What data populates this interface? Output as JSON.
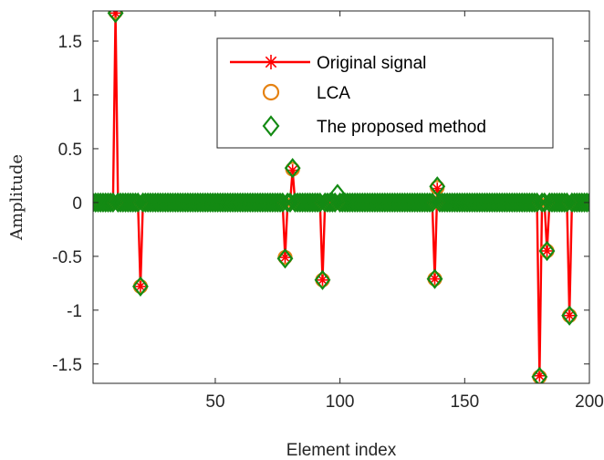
{
  "chart_data": {
    "type": "line",
    "title": "",
    "xlabel": "Element index",
    "ylabel": "Amplitude",
    "xlim": [
      1,
      200
    ],
    "ylim": [
      -1.68,
      1.78
    ],
    "x_ticks": [
      50,
      100,
      150,
      200
    ],
    "y_ticks": [
      -1.5,
      -1,
      -0.5,
      0,
      0.5,
      1,
      1.5
    ],
    "x_tick_labels": [
      "50",
      "100",
      "150",
      "200"
    ],
    "y_tick_labels": [
      "-1.5",
      "-1",
      "-0.5",
      "0",
      "0.5",
      "1",
      "1.5"
    ],
    "length": 200,
    "grid": false,
    "legend_position": "top-right",
    "series": [
      {
        "name": "Original signal",
        "color": "#ff0000",
        "marker": "asterisk",
        "style": "line",
        "nonzero": [
          [
            10,
            1.76
          ],
          [
            20,
            -0.78
          ],
          [
            78,
            -0.51
          ],
          [
            81,
            0.3
          ],
          [
            93,
            -0.72
          ],
          [
            138,
            -0.71
          ],
          [
            139,
            0.13
          ],
          [
            180,
            -1.61
          ],
          [
            183,
            -0.45
          ],
          [
            192,
            -1.05
          ]
        ]
      },
      {
        "name": "LCA",
        "color": "#e58213",
        "marker": "circle",
        "style": "markers",
        "nonzero": [
          [
            10,
            1.77
          ],
          [
            20,
            -0.78
          ],
          [
            78,
            -0.51
          ],
          [
            81,
            0.31
          ],
          [
            93,
            -0.72
          ],
          [
            138,
            -0.71
          ],
          [
            139,
            0.14
          ],
          [
            180,
            -1.62
          ],
          [
            183,
            -0.45
          ],
          [
            192,
            -1.05
          ]
        ]
      },
      {
        "name": "The proposed method",
        "color": "#138a13",
        "marker": "diamond",
        "style": "markers",
        "nonzero": [
          [
            10,
            1.76
          ],
          [
            20,
            -0.78
          ],
          [
            78,
            -0.52
          ],
          [
            81,
            0.32
          ],
          [
            93,
            -0.72
          ],
          [
            99,
            0.08
          ],
          [
            138,
            -0.71
          ],
          [
            139,
            0.15
          ],
          [
            180,
            -1.62
          ],
          [
            183,
            -0.45
          ],
          [
            192,
            -1.05
          ]
        ]
      }
    ]
  }
}
